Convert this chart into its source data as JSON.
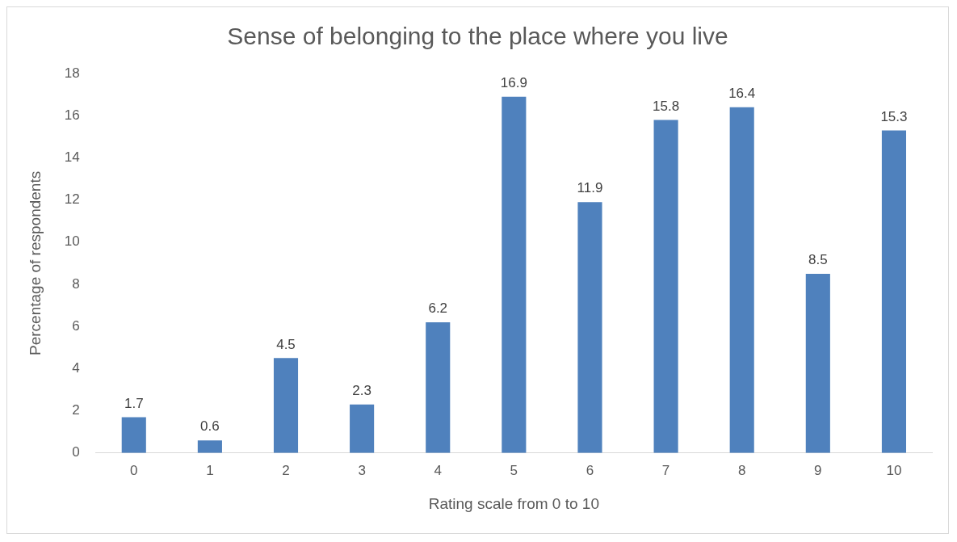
{
  "chart_data": {
    "type": "bar",
    "title": "Sense of belonging to the place where you live",
    "xlabel": "Rating scale from 0 to 10",
    "ylabel": "Percentage of respondents",
    "categories": [
      "0",
      "1",
      "2",
      "3",
      "4",
      "5",
      "6",
      "7",
      "8",
      "9",
      "10"
    ],
    "values": [
      1.7,
      0.6,
      4.5,
      2.3,
      6.2,
      16.9,
      11.9,
      15.8,
      16.4,
      8.5,
      15.3
    ],
    "color": "#4f81bd",
    "ylim": [
      0,
      18
    ],
    "yticks": [
      0,
      2,
      4,
      6,
      8,
      10,
      12,
      14,
      16,
      18
    ],
    "grid": false,
    "legend": false,
    "data_labels": true
  }
}
